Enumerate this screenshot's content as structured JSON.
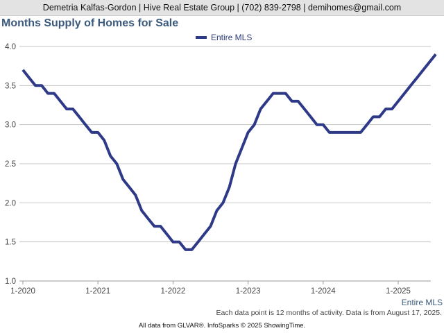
{
  "header": {
    "contact": "Demetria Kalfas-Gordon | Hive Real Estate Group | (702) 839-2798 | demihomes@gmail.com"
  },
  "notes": {
    "data_note": "Each data point is 12 months of activity. Data is from August 17, 2025.",
    "footer": "All data from GLVAR®. InfoSparks © 2025 ShowingTime."
  },
  "chart_data": {
    "type": "line",
    "title": "Months Supply of Homes for Sale",
    "xlabel": "",
    "ylabel": "",
    "series_label": "Entire MLS",
    "legend_position": "top-center",
    "grid": true,
    "ylim": [
      1.0,
      4.0
    ],
    "yticks": [
      "1.0",
      "1.5",
      "2.0",
      "2.5",
      "3.0",
      "3.5",
      "4.0"
    ],
    "xlim": [
      "2020-01",
      "2025-07"
    ],
    "xticks": [
      "1-2020",
      "1-2021",
      "1-2022",
      "1-2023",
      "1-2024",
      "1-2025"
    ],
    "colors": {
      "series": "#2e3a87",
      "grid": "#c6c6c6",
      "axis": "#999999"
    },
    "series": [
      {
        "name": "Entire MLS",
        "x": [
          "2020-01",
          "2020-02",
          "2020-03",
          "2020-04",
          "2020-05",
          "2020-06",
          "2020-07",
          "2020-08",
          "2020-09",
          "2020-10",
          "2020-11",
          "2020-12",
          "2021-01",
          "2021-02",
          "2021-03",
          "2021-04",
          "2021-05",
          "2021-06",
          "2021-07",
          "2021-08",
          "2021-09",
          "2021-10",
          "2021-11",
          "2021-12",
          "2022-01",
          "2022-02",
          "2022-03",
          "2022-04",
          "2022-05",
          "2022-06",
          "2022-07",
          "2022-08",
          "2022-09",
          "2022-10",
          "2022-11",
          "2022-12",
          "2023-01",
          "2023-02",
          "2023-03",
          "2023-04",
          "2023-05",
          "2023-06",
          "2023-07",
          "2023-08",
          "2023-09",
          "2023-10",
          "2023-11",
          "2023-12",
          "2024-01",
          "2024-02",
          "2024-03",
          "2024-04",
          "2024-05",
          "2024-06",
          "2024-07",
          "2024-08",
          "2024-09",
          "2024-10",
          "2024-11",
          "2024-12",
          "2025-01",
          "2025-02",
          "2025-03",
          "2025-04",
          "2025-05",
          "2025-06",
          "2025-07"
        ],
        "values": [
          3.7,
          3.6,
          3.5,
          3.5,
          3.4,
          3.4,
          3.3,
          3.2,
          3.2,
          3.1,
          3.0,
          2.9,
          2.9,
          2.8,
          2.6,
          2.5,
          2.3,
          2.2,
          2.1,
          1.9,
          1.8,
          1.7,
          1.7,
          1.6,
          1.5,
          1.5,
          1.4,
          1.4,
          1.5,
          1.6,
          1.7,
          1.9,
          2.0,
          2.2,
          2.5,
          2.7,
          2.9,
          3.0,
          3.2,
          3.3,
          3.4,
          3.4,
          3.4,
          3.3,
          3.3,
          3.2,
          3.1,
          3.0,
          3.0,
          2.9,
          2.9,
          2.9,
          2.9,
          2.9,
          2.9,
          3.0,
          3.1,
          3.1,
          3.2,
          3.2,
          3.3,
          3.4,
          3.5,
          3.6,
          3.7,
          3.8,
          3.9
        ]
      }
    ]
  }
}
